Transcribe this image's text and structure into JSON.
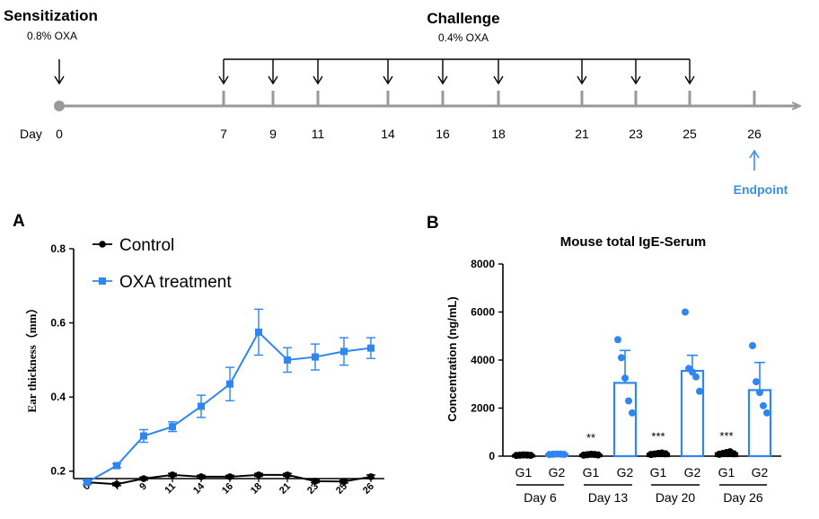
{
  "timeline": {
    "sensitization_title": "Sensitization",
    "sensitization_dose": "0.8% OXA",
    "challenge_title": "Challenge",
    "challenge_dose": "0.4% OXA",
    "day_label": "Day",
    "sensitization_day": 0,
    "challenge_days": [
      7,
      9,
      11,
      14,
      16,
      18,
      21,
      23,
      25
    ],
    "endpoint_day": 26,
    "endpoint_label": "Endpoint",
    "tick_labels": [
      "0",
      "7",
      "9",
      "11",
      "14",
      "16",
      "18",
      "21",
      "23",
      "25",
      "26"
    ],
    "colors": {
      "axis": "#999999",
      "endpoint": "#3b8eea",
      "arrow": "#000000"
    }
  },
  "chart_data": [
    {
      "panel_label": "A",
      "type": "line",
      "title": "",
      "xlabel": "",
      "ylabel": "Ear thickness（mm）",
      "categories": [
        "0",
        "7",
        "9",
        "11",
        "14",
        "16",
        "18",
        "21",
        "23",
        "25",
        "26"
      ],
      "ylim": [
        0.18,
        0.8
      ],
      "yticks": [
        "0.2",
        "0.4",
        "0.6",
        "0.8"
      ],
      "ytick_values": [
        0.2,
        0.4,
        0.6,
        0.8
      ],
      "legend": [
        "Control",
        "OXA treatment"
      ],
      "series": [
        {
          "name": "Control",
          "color": "#000000",
          "marker": "circle",
          "values": [
            0.17,
            0.165,
            0.18,
            0.19,
            0.185,
            0.185,
            0.19,
            0.19,
            0.173,
            0.172,
            0.185
          ],
          "errors": [
            0.005,
            0.004,
            0.004,
            0.004,
            0.004,
            0.004,
            0.004,
            0.004,
            0.004,
            0.004,
            0.005
          ]
        },
        {
          "name": "OXA treatment",
          "color": "#2f86f0",
          "marker": "square",
          "values": [
            0.17,
            0.215,
            0.295,
            0.32,
            0.375,
            0.435,
            0.575,
            0.5,
            0.508,
            0.523,
            0.532
          ],
          "errors": [
            0.005,
            0.005,
            0.017,
            0.013,
            0.03,
            0.045,
            0.062,
            0.033,
            0.035,
            0.037,
            0.028
          ]
        }
      ]
    },
    {
      "panel_label": "B",
      "type": "bar",
      "title": "Mouse total IgE-Serum",
      "xlabel": "",
      "ylabel": "Concentration (ng/mL)",
      "ylim": [
        0,
        8000
      ],
      "yticks": [
        "0",
        "2000",
        "4000",
        "6000",
        "8000"
      ],
      "ytick_values": [
        0,
        2000,
        4000,
        6000,
        8000
      ],
      "groups": [
        "Day 6",
        "Day 13",
        "Day 20",
        "Day 26"
      ],
      "bars": [
        {
          "label": "G1",
          "group": "Day 6",
          "value": 40,
          "error": 10,
          "color": "#000000",
          "points": [
            30,
            40,
            50,
            45,
            35
          ],
          "sig": ""
        },
        {
          "label": "G2",
          "group": "Day 6",
          "value": 80,
          "error": 15,
          "color": "#2f86f0",
          "points": [
            70,
            80,
            90,
            85,
            75
          ],
          "sig": ""
        },
        {
          "label": "G1",
          "group": "Day 13",
          "value": 60,
          "error": 15,
          "color": "#000000",
          "points": [
            40,
            60,
            80,
            70,
            50
          ],
          "sig": "**"
        },
        {
          "label": "G2",
          "group": "Day 13",
          "value": 3050,
          "error": 1350,
          "color": "#2f86f0",
          "points": [
            4850,
            4100,
            3250,
            2300,
            1800
          ],
          "sig": ""
        },
        {
          "label": "G1",
          "group": "Day 20",
          "value": 100,
          "error": 25,
          "color": "#000000",
          "points": [
            70,
            90,
            110,
            130,
            100
          ],
          "sig": "***"
        },
        {
          "label": "G2",
          "group": "Day 20",
          "value": 3550,
          "error": 650,
          "color": "#2f86f0",
          "points": [
            6000,
            3650,
            3500,
            3300,
            2700
          ],
          "sig": ""
        },
        {
          "label": "G1",
          "group": "Day 26",
          "value": 120,
          "error": 30,
          "color": "#000000",
          "points": [
            80,
            110,
            150,
            180,
            100
          ],
          "sig": "***"
        },
        {
          "label": "G2",
          "group": "Day 26",
          "value": 2750,
          "error": 1150,
          "color": "#2f86f0",
          "points": [
            4600,
            3100,
            2650,
            2100,
            1800
          ],
          "sig": ""
        }
      ]
    }
  ]
}
